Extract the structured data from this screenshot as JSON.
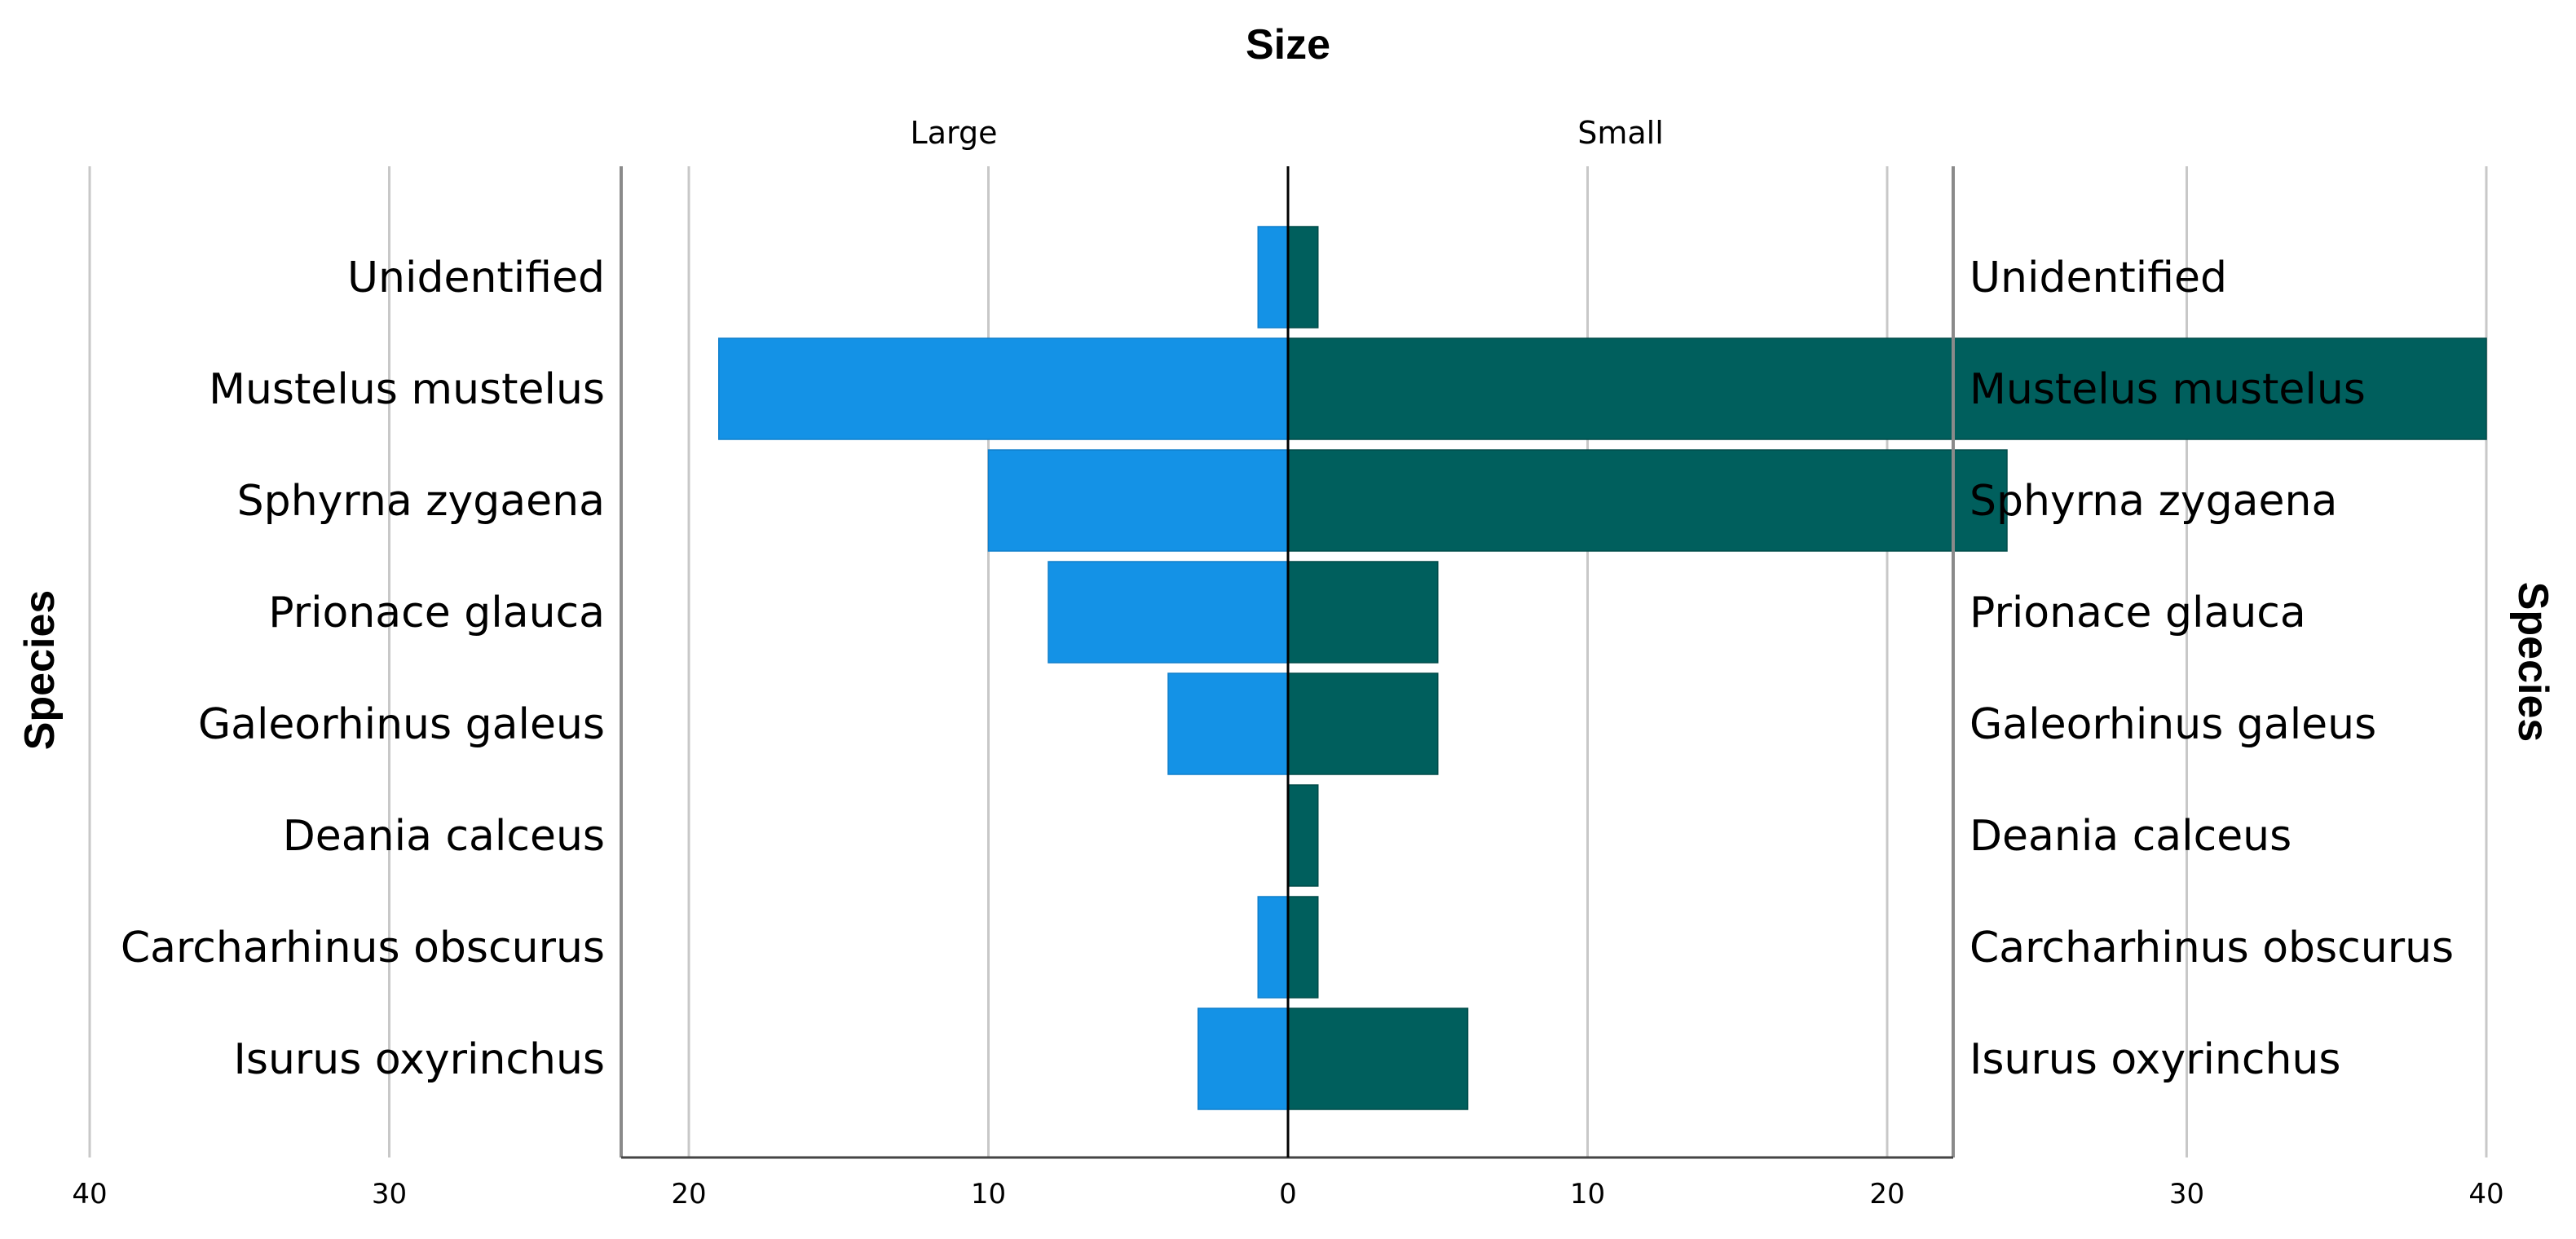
{
  "chart_data": {
    "type": "bar",
    "orientation": "horizontal",
    "layout": "population-pyramid",
    "title": "Size",
    "ylabel": "Species",
    "categories": [
      "Unidentified",
      "Mustelus mustelus",
      "Sphyrna zygaena",
      "Prionace glauca",
      "Galeorhinus galeus",
      "Deania calceus",
      "Carcharhinus obscurus",
      "Isurus oxyrinchus"
    ],
    "series": [
      {
        "name": "Large",
        "side": "left",
        "color": "#1492e6",
        "values": [
          1,
          19,
          10,
          8,
          4,
          0,
          1,
          3
        ]
      },
      {
        "name": "Small",
        "side": "right",
        "color": "#005f5d",
        "values": [
          1,
          40,
          24,
          5,
          5,
          1,
          1,
          6
        ]
      }
    ],
    "xlim": [
      0,
      44.5
    ],
    "x_ticks": [
      0,
      10,
      20,
      30,
      40
    ],
    "grid": true
  }
}
